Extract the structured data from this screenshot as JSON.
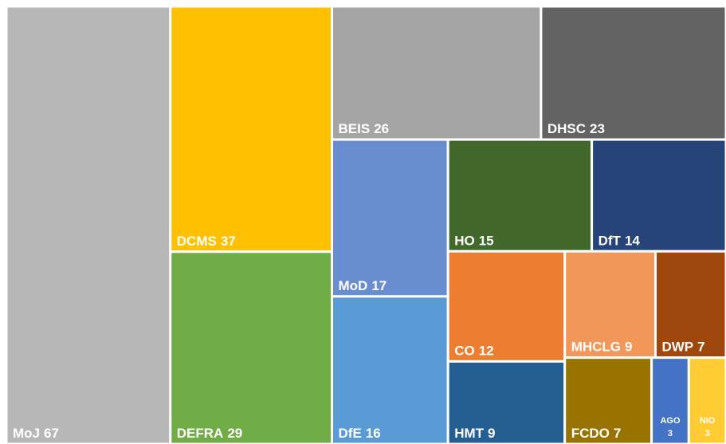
{
  "chart_data": {
    "type": "treemap",
    "categories": [
      "MoJ",
      "DCMS",
      "DEFRA",
      "BEIS",
      "DHSC",
      "MoD",
      "DfE",
      "HO",
      "DfT",
      "CO",
      "HMT",
      "MHCLG",
      "DWP",
      "FCDO",
      "AGO",
      "NIO"
    ],
    "values": [
      67,
      37,
      29,
      26,
      23,
      17,
      16,
      15,
      14,
      12,
      9,
      9,
      7,
      7,
      3,
      3
    ],
    "colors": [
      "#b7b7b7",
      "#ffc000",
      "#70ad47",
      "#a5a5a5",
      "#636363",
      "#698ed0",
      "#5b9bd5",
      "#43682b",
      "#264478",
      "#ed7d31",
      "#255e91",
      "#f1975a",
      "#9e480e",
      "#997300",
      "#4472c4",
      "#ffcd33"
    ]
  }
}
